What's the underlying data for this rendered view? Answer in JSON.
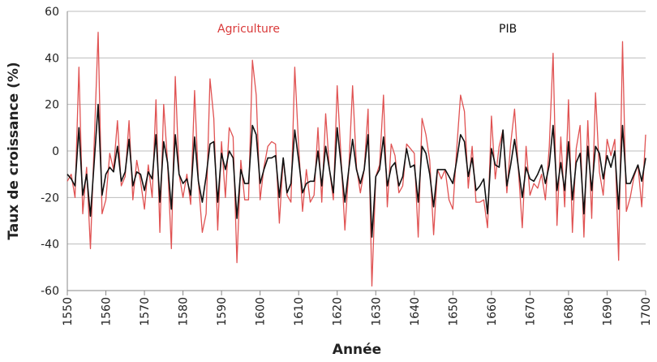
{
  "chart_data": {
    "type": "line",
    "title": "",
    "xlabel": "Année",
    "ylabel": "Taux de croissance (%)",
    "xlim": [
      1550,
      1700
    ],
    "ylim": [
      -60,
      60
    ],
    "x_ticks": [
      1550,
      1560,
      1570,
      1580,
      1590,
      1600,
      1610,
      1620,
      1630,
      1640,
      1650,
      1660,
      1670,
      1680,
      1690,
      1700
    ],
    "y_ticks": [
      60,
      40,
      20,
      0,
      -20,
      -40,
      -60
    ],
    "grid": "horizontal",
    "x_start": 1550,
    "series": [
      {
        "name": "Agriculture",
        "color": "#e05252",
        "values": [
          -13,
          -10,
          -20,
          36,
          -27,
          -7,
          -42,
          5,
          51,
          -27,
          -21,
          -1,
          -8,
          13,
          -15,
          -11,
          13,
          -21,
          -4,
          -13,
          -25,
          -6,
          -20,
          22,
          -35,
          20,
          -5,
          -42,
          32,
          -10,
          -20,
          -10,
          -23,
          26,
          -13,
          -35,
          -27,
          31,
          14,
          -34,
          4,
          -20,
          10,
          6,
          -48,
          -4,
          -21,
          -21,
          39,
          24,
          -21,
          -7,
          2,
          4,
          3,
          -31,
          -3,
          -19,
          -22,
          36,
          2,
          -26,
          -8,
          -22,
          -19,
          10,
          -22,
          16,
          -8,
          -21,
          28,
          -3,
          -34,
          -8,
          28,
          -7,
          -18,
          -8,
          18,
          -58,
          -11,
          -6,
          24,
          -24,
          3,
          -2,
          -18,
          -15,
          3,
          1,
          -1,
          -37,
          14,
          7,
          -4,
          -36,
          -8,
          -12,
          -8,
          -21,
          -25,
          1,
          24,
          17,
          -16,
          2,
          -22,
          -22,
          -21,
          -33,
          15,
          -12,
          2,
          9,
          -18,
          3,
          18,
          -8,
          -33,
          2,
          -19,
          -14,
          -16,
          -10,
          -21,
          2,
          42,
          -32,
          6,
          -24,
          22,
          -35,
          1,
          11,
          -37,
          13,
          -29,
          25,
          -9,
          -19,
          5,
          -2,
          5,
          -47,
          47,
          -26,
          -20,
          -11,
          -6,
          -24,
          7
        ]
      },
      {
        "name": "PIB",
        "color": "#111111",
        "values": [
          -10,
          -12,
          -15,
          10,
          -19,
          -10,
          -28,
          -4,
          20,
          -19,
          -10,
          -7,
          -9,
          2,
          -13,
          -9,
          5,
          -15,
          -9,
          -10,
          -17,
          -9,
          -12,
          7,
          -22,
          4,
          -5,
          -25,
          7,
          -10,
          -14,
          -12,
          -19,
          6,
          -13,
          -22,
          -11,
          3,
          4,
          -22,
          -1,
          -8,
          0,
          -3,
          -29,
          -8,
          -14,
          -14,
          11,
          7,
          -14,
          -8,
          -3,
          -3,
          -2,
          -20,
          -3,
          -18,
          -14,
          9,
          -4,
          -18,
          -14,
          -13,
          -13,
          0,
          -15,
          2,
          -8,
          -18,
          10,
          -6,
          -22,
          -8,
          5,
          -8,
          -14,
          -8,
          7,
          -37,
          -11,
          -8,
          6,
          -15,
          -7,
          -5,
          -15,
          -11,
          1,
          -7,
          -6,
          -22,
          2,
          -1,
          -10,
          -24,
          -8,
          -8,
          -8,
          -11,
          -14,
          -4,
          7,
          4,
          -11,
          -3,
          -17,
          -15,
          -12,
          -27,
          1,
          -6,
          -7,
          9,
          -15,
          -6,
          5,
          -7,
          -20,
          -7,
          -12,
          -13,
          -10,
          -6,
          -14,
          -6,
          11,
          -17,
          -5,
          -17,
          4,
          -21,
          -5,
          -1,
          -27,
          2,
          -17,
          2,
          -1,
          -12,
          -2,
          -7,
          0,
          -25,
          11,
          -14,
          -14,
          -10,
          -6,
          -13,
          -3
        ]
      }
    ],
    "legend": {
      "placement": "inline-top",
      "labels": [
        "Agriculture",
        "PIB"
      ],
      "label_colors": [
        "#d93a3a",
        "#111111"
      ]
    }
  }
}
